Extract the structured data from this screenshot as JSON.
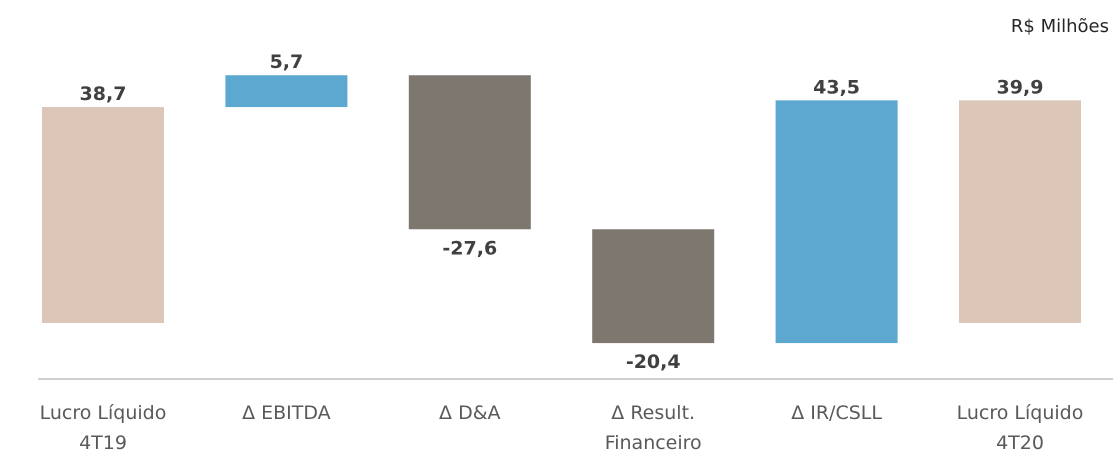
{
  "chart_data": {
    "type": "waterfall",
    "unit_label": "R$ Milhões",
    "categories": [
      "Lucro Líquido 4T19",
      "Δ EBITDA",
      "Δ D&A",
      "Δ Result. Financeiro",
      "Δ IR/CSLL",
      "Lucro Líquido 4T20"
    ],
    "values": [
      38.7,
      5.7,
      -27.6,
      -20.4,
      43.5,
      39.9
    ],
    "value_labels": [
      "38,7",
      "5,7",
      "-27,6",
      "-20,4",
      "43,5",
      "39,9"
    ],
    "colors": [
      "#dcc6b8",
      "#5ca8d0",
      "#7d7770",
      "#7d7770",
      "#5ca8d0",
      "#dcc6b8"
    ]
  }
}
